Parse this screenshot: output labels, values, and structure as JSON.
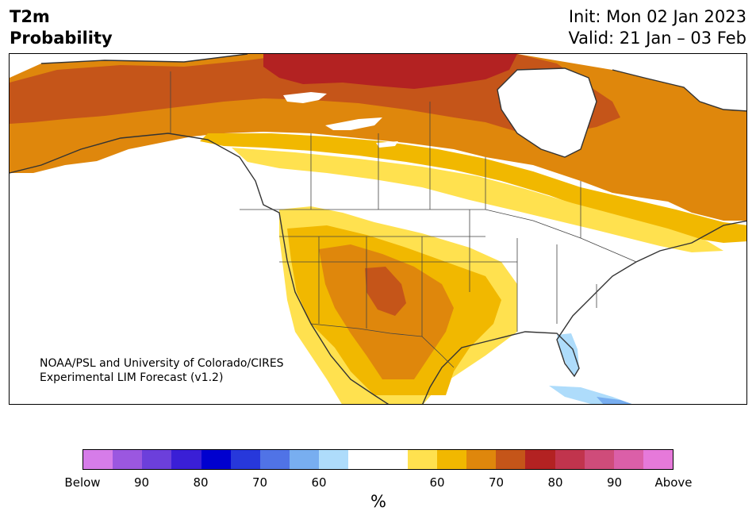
{
  "title": {
    "line1": "T2m",
    "line2": "Probability",
    "init": "Init: Mon 02 Jan 2023",
    "valid": "Valid: 21 Jan – 03 Feb"
  },
  "credit": {
    "line1": "NOAA/PSL and University of Colorado/CIRES",
    "line2": "Experimental LIM Forecast (v1.2)"
  },
  "colorbar": {
    "unit": "%",
    "colors": [
      "#d67ce9",
      "#9b57e0",
      "#6c3fdb",
      "#3a1fd6",
      "#0000cf",
      "#2738db",
      "#5073e6",
      "#78aef0",
      "#aedcfb",
      "#ffffff",
      "#ffffff",
      "#ffe14f",
      "#f1b800",
      "#df870c",
      "#c55519",
      "#b32222",
      "#c1344d",
      "#cf4c7a",
      "#db5fa8",
      "#e679da"
    ],
    "ticks": [
      "Below",
      "90",
      "80",
      "70",
      "60",
      "60",
      "70",
      "80",
      "90",
      "Above"
    ]
  },
  "map": {
    "region": "North America",
    "palette": {
      "p50": "#ffe14f",
      "p60": "#f1b800",
      "p70": "#df870c",
      "p80": "#c55519",
      "p90": "#b32222",
      "below60": "#aedcfb",
      "below70": "#78aef0",
      "coast": "#333333"
    }
  }
}
